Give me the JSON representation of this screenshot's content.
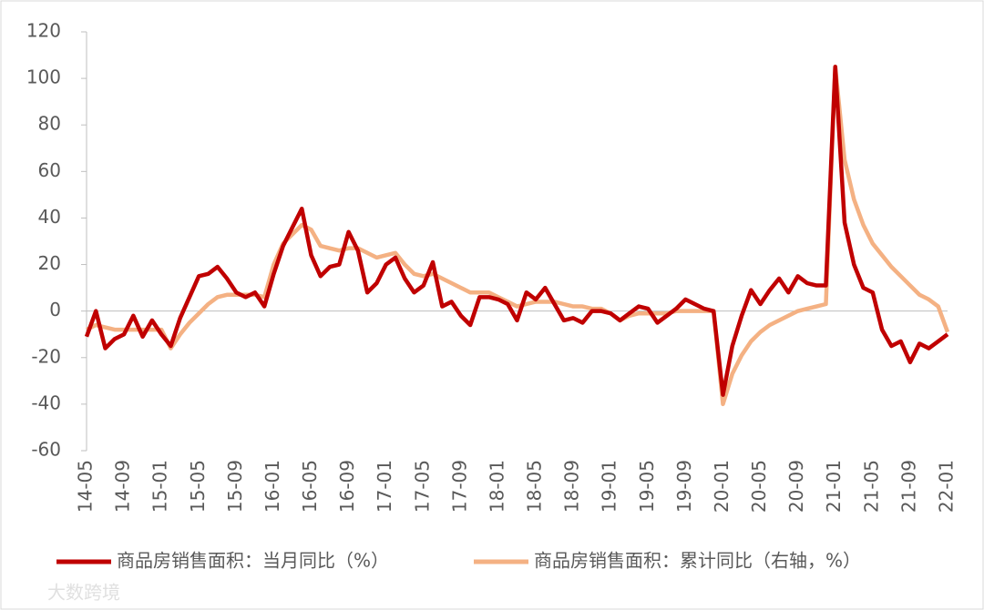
{
  "chart_data": {
    "type": "line",
    "categories": [
      "14-05",
      null,
      null,
      null,
      "14-09",
      null,
      null,
      null,
      "15-01",
      null,
      null,
      null,
      "15-05",
      null,
      null,
      null,
      "15-09",
      null,
      null,
      null,
      "16-01",
      null,
      null,
      null,
      "16-05",
      null,
      null,
      null,
      "16-09",
      null,
      null,
      null,
      "17-01",
      null,
      null,
      null,
      "17-05",
      null,
      null,
      null,
      "17-09",
      null,
      null,
      null,
      "18-01",
      null,
      null,
      null,
      "18-05",
      null,
      null,
      null,
      "18-09",
      null,
      null,
      null,
      "19-01",
      null,
      null,
      null,
      "19-05",
      null,
      null,
      null,
      "19-09",
      null,
      null,
      null,
      "20-01",
      null,
      null,
      null,
      "20-05",
      null,
      null,
      null,
      "20-09",
      null,
      null,
      null,
      "21-01",
      null,
      null,
      null,
      "21-05",
      null,
      null,
      null,
      "21-09",
      null,
      null,
      null,
      "22-01"
    ],
    "series": [
      {
        "name": "商品房销售面积：当月同比（%）",
        "color": "#c00000",
        "values": [
          -11,
          0,
          -16,
          -12,
          -10,
          -2,
          -11,
          -4,
          -10,
          -15,
          -3,
          6,
          15,
          16,
          19,
          14,
          8,
          6,
          8,
          2,
          16,
          28,
          36,
          44,
          24,
          15,
          19,
          20,
          34,
          26,
          8,
          12,
          20,
          23,
          14,
          8,
          11,
          21,
          2,
          4,
          -2,
          -6,
          6,
          6,
          5,
          3,
          -4,
          8,
          5,
          10,
          3,
          -4,
          -3,
          -5,
          0,
          0,
          -1,
          -4,
          -1,
          2,
          1,
          -5,
          -2,
          1,
          5,
          3,
          1,
          0,
          -36,
          -15,
          -2,
          9,
          3,
          9,
          14,
          8,
          15,
          12,
          11,
          11,
          105,
          38,
          20,
          10,
          8,
          -8,
          -15,
          -13,
          -22,
          -14,
          -16,
          -13,
          -10
        ]
      },
      {
        "name": "商品房销售面积：累计同比（右轴，%）",
        "color": "#f4b183",
        "values": [
          -8,
          -6,
          -7,
          -8,
          -8,
          -8,
          -8,
          -8,
          -8,
          -16,
          -10,
          -5,
          -1,
          3,
          6,
          7,
          7,
          7,
          7,
          6,
          20,
          29,
          33,
          37,
          35,
          28,
          27,
          26,
          27,
          27,
          25,
          23,
          24,
          25,
          20,
          16,
          15,
          16,
          14,
          12,
          10,
          8,
          8,
          8,
          6,
          4,
          2,
          3,
          4,
          4,
          4,
          3,
          2,
          2,
          1,
          1,
          -1,
          -4,
          -2,
          -1,
          -1,
          -1,
          -1,
          0,
          0,
          0,
          0,
          0,
          -40,
          -27,
          -19,
          -13,
          -9,
          -6,
          -4,
          -2,
          0,
          1,
          2,
          3,
          105,
          65,
          48,
          37,
          29,
          24,
          19,
          15,
          11,
          7,
          5,
          2,
          -9
        ]
      }
    ],
    "ylim": [
      -60,
      120
    ],
    "yticks": [
      -60,
      -40,
      -20,
      0,
      20,
      40,
      60,
      80,
      100,
      120
    ],
    "watermark": "大数跨境"
  }
}
